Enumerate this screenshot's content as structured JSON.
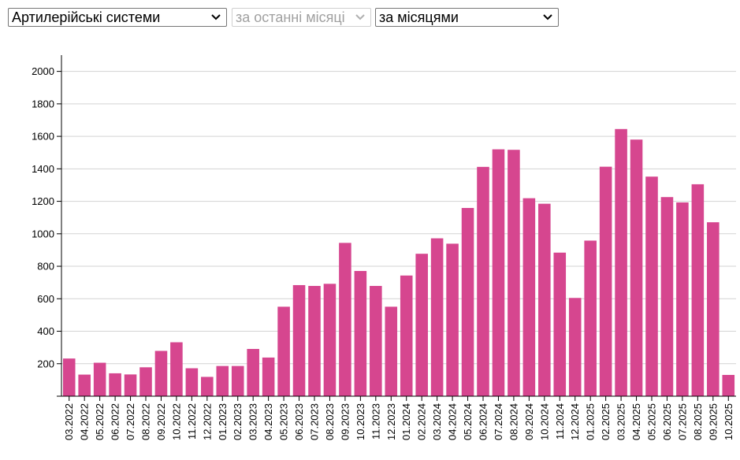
{
  "controls": {
    "category_select": {
      "value": "Артилерійські системи"
    },
    "period_select": {
      "value": "за останні місяці",
      "disabled": true
    },
    "granularity_select": {
      "value": "за місяцями"
    }
  },
  "colors": {
    "bar": "#d6468f",
    "grid": "#d3d3d3",
    "axis": "#000000"
  },
  "chart_data": {
    "type": "bar",
    "title": "",
    "xlabel": "",
    "ylabel": "",
    "ylim": [
      0,
      2100
    ],
    "yticks": [
      200,
      400,
      600,
      800,
      1000,
      1200,
      1400,
      1600,
      1800,
      2000
    ],
    "grid": true,
    "categories": [
      "03.2022",
      "04.2022",
      "05.2022",
      "06.2022",
      "07.2022",
      "08.2022",
      "09.2022",
      "10.2022",
      "11.2022",
      "12.2022",
      "01.2023",
      "02.2023",
      "03.2023",
      "04.2023",
      "05.2023",
      "06.2023",
      "07.2023",
      "08.2023",
      "09.2023",
      "10.2023",
      "11.2023",
      "12.2023",
      "01.2024",
      "02.2024",
      "03.2024",
      "04.2024",
      "05.2024",
      "06.2024",
      "07.2024",
      "08.2024",
      "09.2024",
      "10.2024",
      "11.2024",
      "12.2024",
      "01.2025",
      "02.2025",
      "03.2025",
      "04.2025",
      "05.2025",
      "06.2025",
      "07.2025",
      "08.2025",
      "09.2025",
      "10.2025"
    ],
    "values": [
      232,
      133,
      206,
      141,
      134,
      178,
      279,
      332,
      172,
      119,
      186,
      186,
      291,
      238,
      551,
      684,
      679,
      692,
      944,
      771,
      679,
      551,
      743,
      877,
      972,
      939,
      1159,
      1412,
      1520,
      1517,
      1219,
      1185,
      884,
      605,
      958,
      1413,
      1645,
      1580,
      1352,
      1226,
      1193,
      1305,
      1071,
      131
    ]
  }
}
